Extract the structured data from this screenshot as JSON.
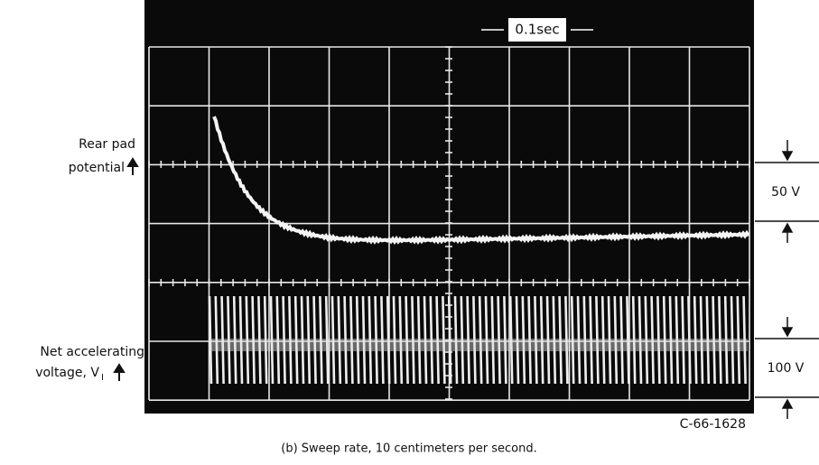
{
  "screen": {
    "sweep_label": "0.1sec",
    "serial": "C-66-1628"
  },
  "traces": [
    {
      "label_lines": [
        "Rear pad",
        "potential"
      ],
      "scale": "50 V"
    },
    {
      "label_lines": [
        "Net accelerating",
        "voltage, V"
      ],
      "subscript": "I",
      "scale": "100 V"
    }
  ],
  "caption": "(b) Sweep rate, 10 centimeters per second."
}
